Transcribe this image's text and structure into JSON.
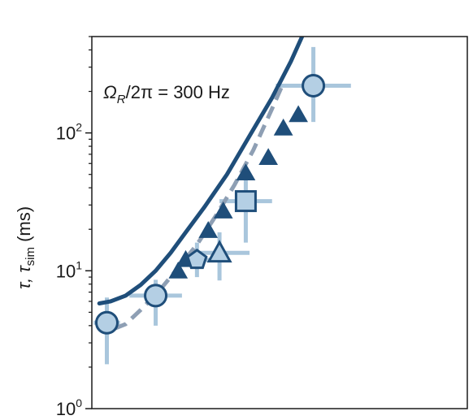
{
  "chart_data": {
    "type": "scatter",
    "ylabel_main": "τ, τ",
    "ylabel_sub": "sim",
    "ylabel_unit": " (ms)",
    "yscale": "log",
    "ylim": [
      1,
      500
    ],
    "xlim": [
      0,
      1
    ],
    "yticks": [
      {
        "value": 1,
        "base": "10",
        "exp": "0"
      },
      {
        "value": 10,
        "base": "10",
        "exp": "1"
      },
      {
        "value": 100,
        "base": "10",
        "exp": "2"
      }
    ],
    "annotation": {
      "symbol": "Ω",
      "subscript": "R",
      "text": "/2π = 300 Hz"
    },
    "colors": {
      "dark": "#1f4e7a",
      "light_fill": "#b4cfe4",
      "errorbar": "#a9c6dc",
      "dashed": "#8e9fb4",
      "axis": "#1a1a1a"
    },
    "series": [
      {
        "kind": "solid_line",
        "points": [
          [
            0.02,
            5.8
          ],
          [
            0.05,
            6.0
          ],
          [
            0.09,
            6.6
          ],
          [
            0.13,
            7.9
          ],
          [
            0.17,
            10.0
          ],
          [
            0.21,
            13.5
          ],
          [
            0.25,
            19.0
          ],
          [
            0.3,
            29.0
          ],
          [
            0.36,
            50.0
          ],
          [
            0.42,
            95.0
          ],
          [
            0.48,
            180.0
          ],
          [
            0.53,
            330.0
          ],
          [
            0.56,
            500.0
          ]
        ]
      },
      {
        "kind": "dashed_line",
        "points": [
          [
            0.06,
            3.8
          ],
          [
            0.09,
            4.1
          ],
          [
            0.13,
            5.2
          ],
          [
            0.18,
            7.2
          ],
          [
            0.23,
            10.5
          ],
          [
            0.28,
            15.5
          ],
          [
            0.33,
            25.0
          ],
          [
            0.38,
            42.0
          ],
          [
            0.43,
            75.0
          ],
          [
            0.48,
            150.0
          ],
          [
            0.51,
            230.0
          ]
        ]
      },
      {
        "kind": "triangles",
        "points": [
          [
            0.23,
            9.9
          ],
          [
            0.25,
            12.0
          ],
          [
            0.31,
            19.5
          ],
          [
            0.35,
            27.0
          ],
          [
            0.41,
            51.0
          ],
          [
            0.47,
            66.0
          ],
          [
            0.51,
            108.0
          ],
          [
            0.55,
            135.0
          ]
        ]
      },
      {
        "kind": "markers",
        "points": [
          {
            "shape": "circle",
            "x": 0.04,
            "y": 4.2,
            "xerr": 0.035,
            "yerr_lo": 2.1,
            "yerr_hi": 6.4
          },
          {
            "shape": "circle",
            "x": 0.17,
            "y": 6.6,
            "xerr": 0.07,
            "yerr_lo": 4.0,
            "yerr_hi": 8.6
          },
          {
            "shape": "pentagon",
            "x": 0.28,
            "y": 12.0,
            "xerr": 0.04,
            "yerr_lo": 9.0,
            "yerr_hi": 16.0
          },
          {
            "shape": "triangle",
            "x": 0.34,
            "y": 13.5,
            "xerr": 0.08,
            "yerr_lo": 8.5,
            "yerr_hi": 19.0
          },
          {
            "shape": "square",
            "x": 0.41,
            "y": 32.0,
            "xerr": 0.07,
            "yerr_lo": 16.0,
            "yerr_hi": 48.0
          },
          {
            "shape": "circle",
            "x": 0.59,
            "y": 220.0,
            "xerr": 0.1,
            "yerr_lo": 120.0,
            "yerr_hi": 420.0
          }
        ]
      }
    ]
  }
}
